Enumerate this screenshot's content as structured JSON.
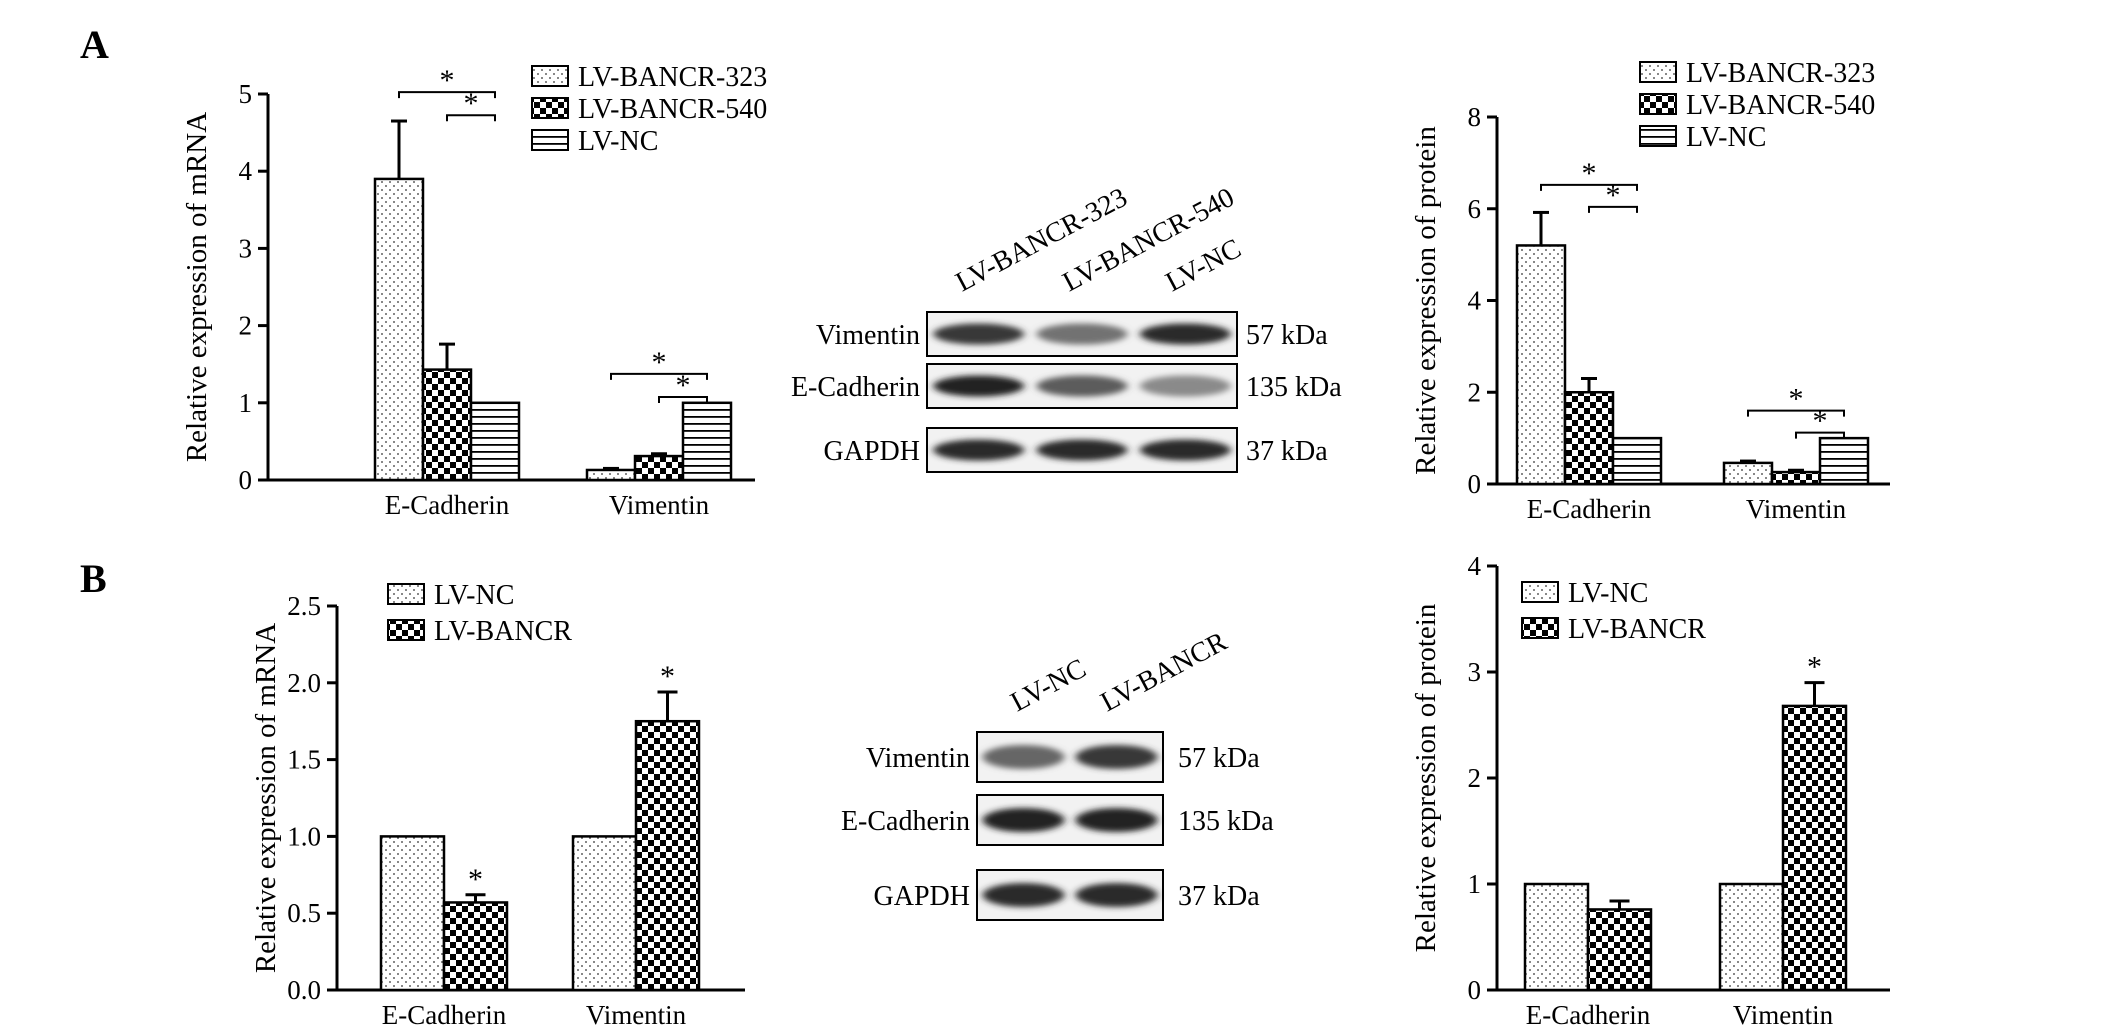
{
  "panels": {
    "a_label": "A",
    "b_label": "B"
  },
  "chart_data": [
    {
      "id": "A-mRNA",
      "type": "bar",
      "title": "",
      "ylabel": "Relative expression of mRNA",
      "xlabel": "",
      "ylim": [
        0,
        5
      ],
      "yticks": [
        "0",
        "1",
        "2",
        "3",
        "4",
        "5"
      ],
      "categories": [
        "E-Cadherin",
        "Vimentin"
      ],
      "series": [
        {
          "name": "LV-BANCR-323",
          "values": [
            3.9,
            0.13
          ],
          "errors": [
            0.75,
            0.02
          ]
        },
        {
          "name": "LV-BANCR-540",
          "values": [
            1.43,
            0.31
          ],
          "errors": [
            0.33,
            0.03
          ]
        },
        {
          "name": "LV-NC",
          "values": [
            1.0,
            1.0
          ],
          "errors": [
            0,
            0
          ]
        }
      ],
      "significance": [
        {
          "category": "E-Cadherin",
          "from": "LV-BANCR-323",
          "to": "LV-NC",
          "label": "*"
        },
        {
          "category": "E-Cadherin",
          "from": "LV-BANCR-540",
          "to": "LV-NC",
          "label": "*"
        },
        {
          "category": "Vimentin",
          "from": "LV-BANCR-323",
          "to": "LV-NC",
          "label": "*"
        },
        {
          "category": "Vimentin",
          "from": "LV-BANCR-540",
          "to": "LV-NC",
          "label": "*"
        }
      ],
      "legend_position": "top-right",
      "grid": false
    },
    {
      "id": "A-protein",
      "type": "bar",
      "title": "",
      "ylabel": "Relative expression of protein",
      "xlabel": "",
      "ylim": [
        0,
        8
      ],
      "yticks": [
        "0",
        "2",
        "4",
        "6",
        "8"
      ],
      "categories": [
        "E-Cadherin",
        "Vimentin"
      ],
      "series": [
        {
          "name": "LV-BANCR-323",
          "values": [
            5.2,
            0.46
          ],
          "errors": [
            0.72,
            0.04
          ]
        },
        {
          "name": "LV-BANCR-540",
          "values": [
            2.0,
            0.26
          ],
          "errors": [
            0.3,
            0.04
          ]
        },
        {
          "name": "LV-NC",
          "values": [
            1.0,
            1.0
          ],
          "errors": [
            0,
            0
          ]
        }
      ],
      "significance": [
        {
          "category": "E-Cadherin",
          "from": "LV-BANCR-323",
          "to": "LV-NC",
          "label": "*"
        },
        {
          "category": "E-Cadherin",
          "from": "LV-BANCR-540",
          "to": "LV-NC",
          "label": "*"
        },
        {
          "category": "Vimentin",
          "from": "LV-BANCR-323",
          "to": "LV-NC",
          "label": "*"
        },
        {
          "category": "Vimentin",
          "from": "LV-BANCR-540",
          "to": "LV-NC",
          "label": "*"
        }
      ],
      "legend_position": "top-right",
      "grid": false
    },
    {
      "id": "B-mRNA",
      "type": "bar",
      "title": "",
      "ylabel": "Relative expression of mRNA",
      "xlabel": "",
      "ylim": [
        0,
        2.5
      ],
      "yticks": [
        "0.0",
        "0.5",
        "1.0",
        "1.5",
        "2.0",
        "2.5"
      ],
      "categories": [
        "E-Cadherin",
        "Vimentin"
      ],
      "series": [
        {
          "name": "LV-NC",
          "values": [
            1.0,
            1.0
          ],
          "errors": [
            0,
            0
          ]
        },
        {
          "name": "LV-BANCR",
          "values": [
            0.57,
            1.75
          ],
          "errors": [
            0.05,
            0.19
          ]
        }
      ],
      "significance": [
        {
          "category": "E-Cadherin",
          "on": "LV-BANCR",
          "label": "*"
        },
        {
          "category": "Vimentin",
          "on": "LV-BANCR",
          "label": "*"
        }
      ],
      "legend_position": "top-left",
      "grid": false
    },
    {
      "id": "B-protein",
      "type": "bar",
      "title": "",
      "ylabel": "Relative expression of protein",
      "xlabel": "",
      "ylim": [
        0,
        4
      ],
      "yticks": [
        "0",
        "1",
        "2",
        "3",
        "4"
      ],
      "categories": [
        "E-Cadherin",
        "Vimentin"
      ],
      "series": [
        {
          "name": "LV-NC",
          "values": [
            1.0,
            1.0
          ],
          "errors": [
            0,
            0
          ]
        },
        {
          "name": "LV-BANCR",
          "values": [
            0.76,
            2.68
          ],
          "errors": [
            0.08,
            0.22
          ]
        }
      ],
      "significance": [
        {
          "category": "Vimentin",
          "on": "LV-BANCR",
          "label": "*"
        }
      ],
      "legend_position": "top-left",
      "grid": false
    }
  ],
  "blots": [
    {
      "id": "A-blot",
      "lanes": [
        "LV-BANCR-323",
        "LV-BANCR-540",
        "LV-NC"
      ],
      "rows": [
        {
          "protein": "Vimentin",
          "size": "57 kDa",
          "intensity": [
            0.85,
            0.6,
            0.9
          ]
        },
        {
          "protein": "E-Cadherin",
          "size": "135 kDa",
          "intensity": [
            0.95,
            0.7,
            0.5
          ]
        },
        {
          "protein": "GAPDH",
          "size": "37 kDa",
          "intensity": [
            0.9,
            0.9,
            0.9
          ]
        }
      ]
    },
    {
      "id": "B-blot",
      "lanes": [
        "LV-NC",
        "LV-BANCR"
      ],
      "rows": [
        {
          "protein": "Vimentin",
          "size": "57 kDa",
          "intensity": [
            0.65,
            0.85
          ]
        },
        {
          "protein": "E-Cadherin",
          "size": "135 kDa",
          "intensity": [
            0.95,
            0.95
          ]
        },
        {
          "protein": "GAPDH",
          "size": "37 kDa",
          "intensity": [
            0.9,
            0.9
          ]
        }
      ]
    }
  ]
}
